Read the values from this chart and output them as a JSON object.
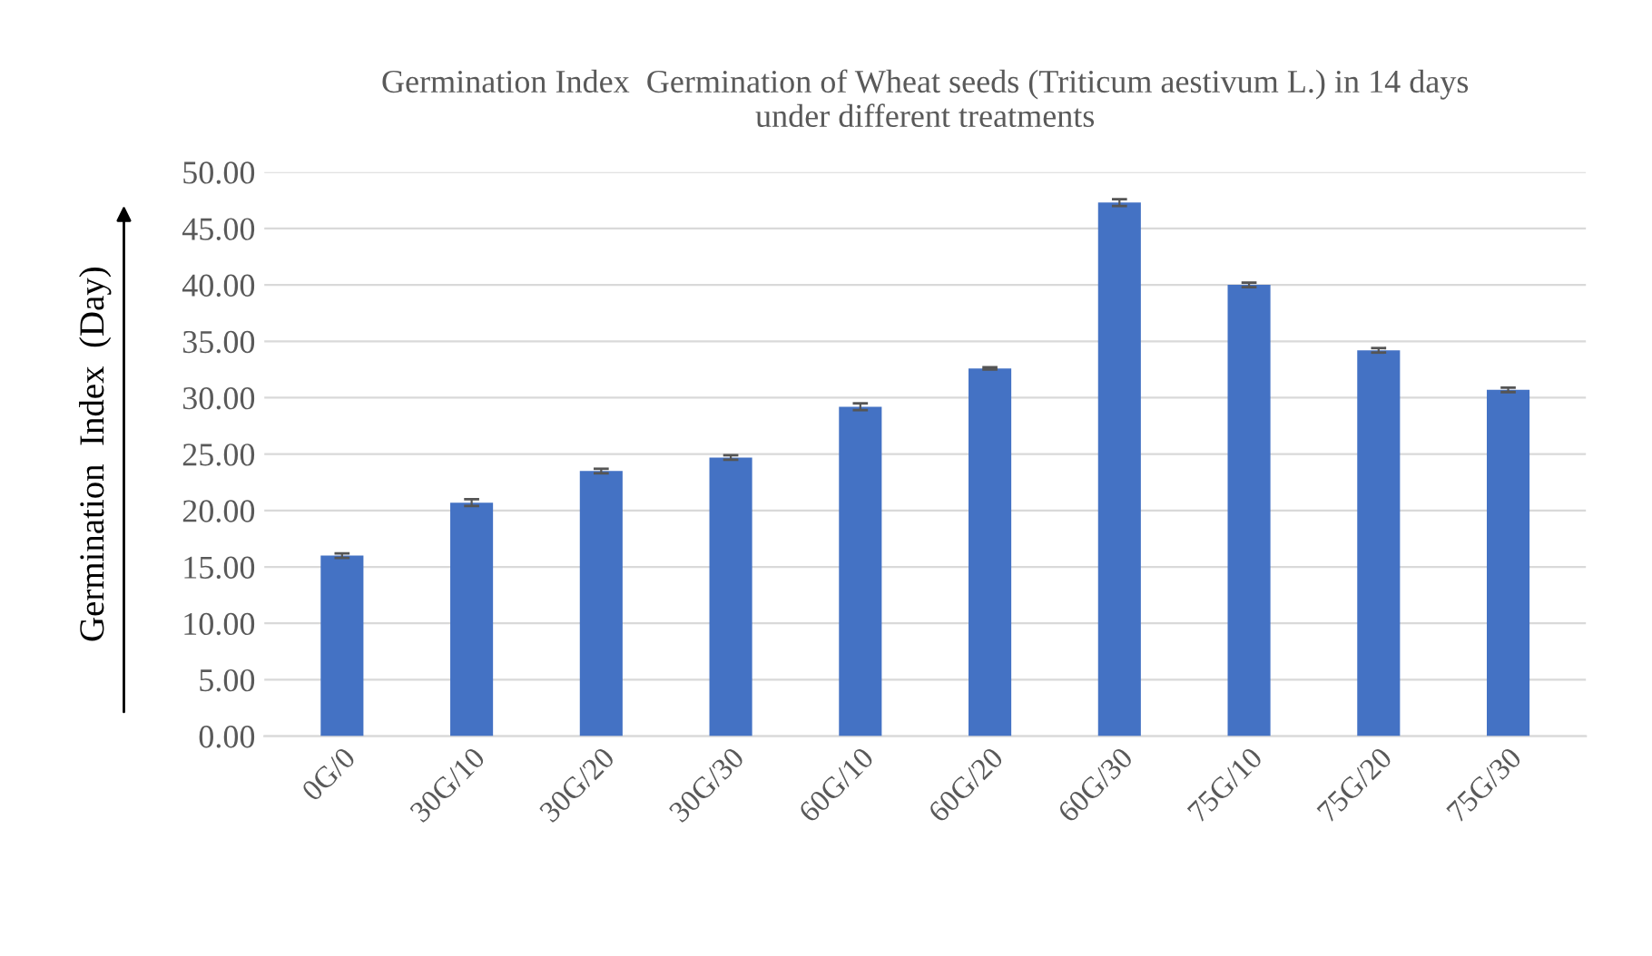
{
  "chart_data": {
    "type": "bar",
    "title": "Germination Index  Germination of Wheat seeds (Triticum aestivum L.) in 14 days\nunder different treatments",
    "ylabel": "Germination  Index  (Day)",
    "categories": [
      "0G/0",
      "30G/10",
      "30G/20",
      "30G/30",
      "60G/10",
      "60G/20",
      "60G/30",
      "75G/10",
      "75G/20",
      "75G/30"
    ],
    "values": [
      16.0,
      20.7,
      23.5,
      24.7,
      29.2,
      32.6,
      47.3,
      40.0,
      34.2,
      30.7
    ],
    "errors": [
      0.2,
      0.3,
      0.2,
      0.2,
      0.3,
      0.1,
      0.3,
      0.2,
      0.2,
      0.2
    ],
    "color": "#4472c4",
    "ylim": [
      0,
      50
    ],
    "yticks": [
      {
        "value": 0,
        "label": "0.00"
      },
      {
        "value": 5,
        "label": "5.00"
      },
      {
        "value": 10,
        "label": "10.00"
      },
      {
        "value": 15,
        "label": "15.00"
      },
      {
        "value": 20,
        "label": "20.00"
      },
      {
        "value": 25,
        "label": "25.00"
      },
      {
        "value": 30,
        "label": "30.00"
      },
      {
        "value": 35,
        "label": "35.00"
      },
      {
        "value": 40,
        "label": "40.00"
      },
      {
        "value": 45,
        "label": "45.00"
      },
      {
        "value": 50,
        "label": "50.00"
      }
    ],
    "grid": "y"
  }
}
